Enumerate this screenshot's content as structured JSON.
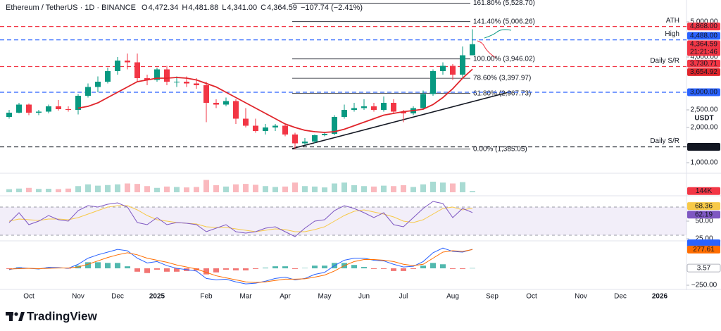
{
  "header": {
    "symbol": "Ethereum / TetherUS · 1D · BINANCE",
    "ohlc": [
      {
        "key": "O",
        "value": {
          "value": 4472.34,
          "label": "4,472.34"
        }
      },
      {
        "key": "H",
        "value": {
          "value": 4481.88,
          "label": "4,481.88"
        }
      },
      {
        "key": "L",
        "value": {
          "value": 4341.0,
          "label": "4,341.00"
        }
      },
      {
        "key": "C",
        "value": {
          "value": 4364.59,
          "label": "4,364.59"
        }
      }
    ],
    "change": "−107.74 (−2.41%)"
  },
  "brand": "TradingView",
  "chart_data": {
    "type": "candlestick",
    "categories": [
      null,
      null,
      "Oct",
      null,
      null,
      null,
      null,
      "Nov",
      null,
      null,
      null,
      "Dec",
      null,
      null,
      null,
      "2025",
      null,
      null,
      null,
      null,
      "Feb",
      null,
      null,
      null,
      "Mar",
      null,
      null,
      null,
      "Apr",
      null,
      null,
      null,
      "May",
      null,
      null,
      null,
      "Jun",
      null,
      null,
      null,
      "Jul",
      null,
      null,
      null,
      null,
      "Aug",
      null,
      null,
      null,
      "Sep",
      null,
      null,
      null,
      "Oct",
      null,
      null,
      null,
      null,
      "Nov",
      null,
      null,
      null,
      "Dec",
      null,
      null,
      null,
      "2026",
      null,
      null
    ],
    "open": [
      2300,
      2420,
      2650,
      2420,
      2450,
      2600,
      2520,
      2500,
      2900,
      3150,
      3300,
      3600,
      3900,
      3850,
      3400,
      3350,
      3650,
      3300,
      3300,
      3250,
      3200,
      2700,
      2650,
      2750,
      2250,
      2050,
      1900,
      2000,
      2050,
      1800,
      1550,
      1600,
      1780,
      1820,
      2300,
      2500,
      2550,
      2600,
      2500,
      2700,
      2450,
      2400,
      2550,
      2950,
      3600,
      3750,
      3500,
      4050,
      null,
      null,
      null,
      null,
      null,
      null,
      null,
      null,
      null,
      null,
      null,
      null,
      null,
      null,
      null,
      null,
      null,
      null,
      null,
      null,
      null
    ],
    "high": [
      2500,
      2700,
      2680,
      2500,
      2650,
      2780,
      2600,
      2950,
      3250,
      3450,
      3700,
      4000,
      4100,
      4100,
      3500,
      3700,
      3750,
      3450,
      3450,
      3400,
      3300,
      2800,
      2850,
      2800,
      2550,
      2250,
      2100,
      2100,
      2080,
      1850,
      1700,
      1800,
      1850,
      2350,
      2650,
      2700,
      2800,
      2700,
      2880,
      2800,
      2500,
      2600,
      3050,
      3650,
      3850,
      3800,
      4300,
      4788,
      null,
      null,
      null,
      null,
      null,
      null,
      null,
      null,
      null,
      null,
      null,
      null,
      null,
      null,
      null,
      null,
      null,
      null,
      null,
      null,
      null
    ],
    "low": [
      2250,
      2400,
      2350,
      2350,
      2400,
      2480,
      2450,
      2370,
      2850,
      3000,
      3250,
      3500,
      3650,
      3300,
      3200,
      3300,
      3200,
      3150,
      3150,
      3100,
      2150,
      2550,
      2600,
      2100,
      2000,
      1850,
      1800,
      1900,
      1750,
      1385,
      1500,
      1550,
      1750,
      1780,
      2250,
      2450,
      2500,
      2450,
      2450,
      2400,
      2150,
      2350,
      2500,
      2900,
      3500,
      3350,
      3400,
      4050,
      null,
      null,
      null,
      null,
      null,
      null,
      null,
      null,
      null,
      null,
      null,
      null,
      null,
      null,
      null,
      null,
      null,
      null,
      null,
      null,
      null
    ],
    "close": [
      2420,
      2650,
      2420,
      2450,
      2600,
      2520,
      2500,
      2900,
      3150,
      3300,
      3600,
      3900,
      3850,
      3400,
      3350,
      3650,
      3300,
      3300,
      3250,
      3200,
      2700,
      2650,
      2750,
      2250,
      2050,
      1900,
      2000,
      2050,
      1800,
      1550,
      1600,
      1780,
      1820,
      2300,
      2500,
      2550,
      2600,
      2500,
      2700,
      2450,
      2400,
      2550,
      2950,
      3600,
      3750,
      3500,
      4050,
      4364.59,
      null,
      null,
      null,
      null,
      null,
      null,
      null,
      null,
      null,
      null,
      null,
      null,
      null,
      null,
      null,
      null,
      null,
      null,
      null,
      null,
      null
    ],
    "close_label": "4,364.59",
    "countdown": "21:21:46",
    "colors": {
      "up": "#089981",
      "down": "#f23645"
    },
    "ylim": [
      720,
      5620
    ],
    "yticks": [
      {
        "value": 1000,
        "label": "1,000.00"
      },
      {
        "value": 2000,
        "label": "2,000.00"
      },
      {
        "value": 2500,
        "label": "2,500.00"
      },
      {
        "value": 4000,
        "label": "4,000.00"
      },
      {
        "value": 5000,
        "label": "5,000.00"
      }
    ],
    "currency": "USDT",
    "ma": {
      "color": "#e0252b",
      "last_label": "3,654.92",
      "values": [
        null,
        null,
        null,
        null,
        null,
        null,
        null,
        2550,
        2600,
        2700,
        2850,
        3000,
        3150,
        3300,
        3350,
        3400,
        3400,
        3420,
        3400,
        3350,
        3250,
        3150,
        3000,
        2850,
        2700,
        2550,
        2400,
        2250,
        2100,
        2000,
        1920,
        1880,
        1860,
        1880,
        1950,
        2050,
        2150,
        2250,
        2350,
        2400,
        2450,
        2480,
        2520,
        2650,
        2850,
        3100,
        3400,
        3654.92,
        null,
        null,
        null,
        null,
        null,
        null,
        null,
        null,
        null,
        null,
        null,
        null,
        null,
        null,
        null,
        null,
        null,
        null,
        null,
        null,
        null
      ]
    },
    "levels": [
      {
        "name": "ATH",
        "value": 4868,
        "label": "4,868.00",
        "color": "#f23645"
      },
      {
        "name": "High",
        "value": 4488,
        "label": "4,488.00",
        "color": "#2962ff"
      },
      {
        "name": "Daily S/R",
        "value": 3730.71,
        "label": "3,730.71",
        "color": "#f23645"
      },
      {
        "value": 3000,
        "label": "3,000.00",
        "color": "#2962ff"
      },
      {
        "name": "Daily S/R",
        "value": 1449.12,
        "label": "1,449.12",
        "color": "#131722"
      }
    ],
    "fib": {
      "color": "#131722",
      "levels": [
        {
          "label": "161.80% (5,528.70)",
          "value": 5528.7
        },
        {
          "label": "141.40% (5,006.26)",
          "value": 5006.26
        },
        {
          "label": "100.00% (3,946.02)",
          "value": 3946.02
        },
        {
          "label": "78.60% (3,397.97)",
          "value": 3397.97
        },
        {
          "label": "61.80% (2,967.73)",
          "value": 2967.73
        },
        {
          "label": "0.00% (1,385.05)",
          "value": 1385.05
        }
      ]
    },
    "volume": {
      "ylim": [
        0,
        2000000
      ],
      "last_label": "144K",
      "label_color": "#f23645",
      "values": [
        350000,
        420000,
        500000,
        380000,
        400000,
        360000,
        420000,
        700000,
        900000,
        750000,
        820000,
        900000,
        1000000,
        950000,
        700000,
        500000,
        650000,
        600000,
        550000,
        600000,
        1400000,
        800000,
        650000,
        900000,
        950000,
        850000,
        700000,
        600000,
        650000,
        1100000,
        700000,
        650000,
        550000,
        1000000,
        1100000,
        800000,
        700000,
        650000,
        750000,
        700000,
        800000,
        600000,
        900000,
        1200000,
        1100000,
        1000000,
        1150000,
        144000,
        null,
        null,
        null,
        null,
        null,
        null,
        null,
        null,
        null,
        null,
        null,
        null,
        null,
        null,
        null,
        null,
        null,
        null,
        null,
        null,
        null
      ]
    },
    "rsi": {
      "ylim": [
        23,
        84
      ],
      "yticks": [
        {
          "value": 25,
          "label": "25.00"
        },
        {
          "value": 50,
          "label": "50.00"
        }
      ],
      "bands": [
        30,
        70
      ],
      "band_color": "#7e57c2",
      "line": {
        "color": "#7e57c2",
        "values": [
          48,
          62,
          45,
          50,
          58,
          52,
          50,
          65,
          72,
          70,
          74,
          76,
          70,
          48,
          45,
          55,
          45,
          48,
          47,
          45,
          35,
          40,
          45,
          35,
          33,
          35,
          40,
          42,
          35,
          28,
          40,
          50,
          52,
          65,
          72,
          68,
          62,
          55,
          62,
          45,
          42,
          55,
          68,
          78,
          75,
          55,
          68,
          62.19,
          null,
          null,
          null,
          null,
          null,
          null,
          null,
          null,
          null,
          null,
          null,
          null,
          null,
          null,
          null,
          null,
          null,
          null,
          null,
          null,
          null
        ]
      },
      "signal": {
        "color": "#f7c948",
        "values": [
          50,
          53,
          52,
          51,
          53,
          53,
          52,
          55,
          60,
          65,
          70,
          72,
          72,
          66,
          58,
          52,
          50,
          48,
          47,
          46,
          42,
          41,
          41,
          39,
          37,
          35,
          37,
          39,
          38,
          35,
          35,
          38,
          42,
          50,
          58,
          64,
          66,
          63,
          60,
          56,
          50,
          48,
          52,
          60,
          68,
          70,
          66,
          68.36,
          null,
          null,
          null,
          null,
          null,
          null,
          null,
          null,
          null,
          null,
          null,
          null,
          null,
          null,
          null,
          null,
          null,
          null,
          null,
          null,
          null
        ]
      }
    },
    "macd": {
      "ylim": [
        -302,
        396
      ],
      "yticks": [
        {
          "value": -250,
          "label": "−250.00"
        }
      ],
      "macd": {
        "color": "#2962ff",
        "values": [
          -20,
          10,
          0,
          -10,
          15,
          10,
          0,
          60,
          150,
          200,
          240,
          280,
          260,
          150,
          80,
          100,
          40,
          0,
          -20,
          -40,
          -150,
          -170,
          -160,
          -200,
          -230,
          -220,
          -190,
          -150,
          -130,
          -170,
          -150,
          -90,
          -60,
          40,
          120,
          150,
          150,
          120,
          110,
          60,
          20,
          30,
          100,
          230,
          300,
          250,
          240,
          281.18,
          null,
          null,
          null,
          null,
          null,
          null,
          null,
          null,
          null,
          null,
          null,
          null,
          null,
          null,
          null,
          null,
          null,
          null,
          null,
          null,
          null
        ]
      },
      "signal": {
        "color": "#ff6d00",
        "values": [
          -10,
          -5,
          0,
          -5,
          0,
          5,
          5,
          20,
          60,
          110,
          160,
          200,
          230,
          200,
          150,
          120,
          90,
          50,
          20,
          -10,
          -60,
          -110,
          -140,
          -170,
          -200,
          -210,
          -200,
          -180,
          -160,
          -160,
          -155,
          -130,
          -100,
          -40,
          40,
          100,
          130,
          130,
          120,
          100,
          60,
          40,
          60,
          150,
          240,
          260,
          250,
          277.61,
          null,
          null,
          null,
          null,
          null,
          null,
          null,
          null,
          null,
          null,
          null,
          null,
          null,
          null,
          null,
          null,
          null,
          null,
          null,
          null,
          null
        ]
      },
      "histogram": {
        "colors": {
          "up": "#26a69a",
          "down": "#ef5350"
        },
        "values": [
          -10,
          15,
          0,
          -5,
          15,
          5,
          -5,
          40,
          90,
          90,
          80,
          80,
          30,
          -50,
          -70,
          -20,
          -50,
          -50,
          -40,
          -30,
          -90,
          -60,
          -20,
          -30,
          -30,
          -10,
          10,
          30,
          30,
          -10,
          5,
          40,
          40,
          80,
          80,
          50,
          20,
          -10,
          -10,
          -40,
          -40,
          -10,
          40,
          80,
          60,
          -10,
          -10,
          3.57,
          null,
          null,
          null,
          null,
          null,
          null,
          null,
          null,
          null,
          null,
          null,
          null,
          null,
          null,
          null,
          null,
          null,
          null,
          null,
          null,
          null
        ]
      }
    }
  }
}
